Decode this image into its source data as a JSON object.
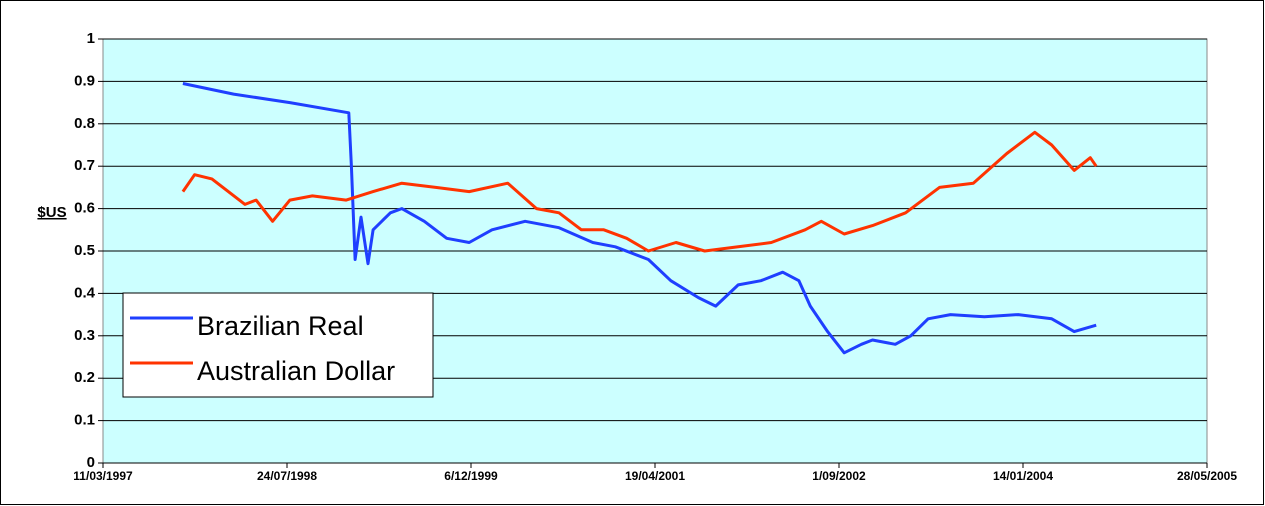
{
  "chart_data": {
    "type": "line",
    "y_label": "$US",
    "xlim": [
      "11/03/1997",
      "28/05/2005"
    ],
    "xticks": [
      "11/03/1997",
      "24/07/1998",
      "6/12/1999",
      "19/04/2001",
      "1/09/2002",
      "14/01/2004",
      "28/05/2005"
    ],
    "ylim": [
      0,
      1
    ],
    "yticks": [
      0,
      0.1,
      0.2,
      0.3,
      0.4,
      0.5,
      0.6,
      0.7,
      0.8,
      0.9,
      1
    ],
    "grid": true,
    "legend": "lower-left",
    "series": [
      {
        "name": "Brazilian Real",
        "color": "#1f3fff",
        "x": [
          "14/10/1997",
          "01/03/1998",
          "01/08/1998",
          "08/01/1999",
          "15/01/1999",
          "25/01/1999",
          "10/02/1999",
          "01/03/1999",
          "15/03/1999",
          "01/05/1999",
          "01/06/1999",
          "01/08/1999",
          "01/10/1999",
          "01/12/1999",
          "01/02/2000",
          "01/05/2000",
          "01/08/2000",
          "01/11/2000",
          "01/01/2001",
          "01/04/2001",
          "01/06/2001",
          "15/08/2001",
          "01/10/2001",
          "01/12/2001",
          "01/02/2002",
          "01/04/2002",
          "15/05/2002",
          "15/06/2002",
          "01/08/2002",
          "15/09/2002",
          "01/11/2002",
          "01/12/2002",
          "01/02/2003",
          "15/03/2003",
          "01/05/2003",
          "01/07/2003",
          "01/10/2003",
          "01/01/2004",
          "01/04/2004",
          "01/06/2004",
          "31/07/2004"
        ],
        "values": [
          0.895,
          0.87,
          0.85,
          0.826,
          0.7,
          0.48,
          0.58,
          0.47,
          0.55,
          0.59,
          0.6,
          0.57,
          0.53,
          0.52,
          0.55,
          0.57,
          0.555,
          0.52,
          0.51,
          0.48,
          0.43,
          0.39,
          0.37,
          0.42,
          0.43,
          0.45,
          0.43,
          0.37,
          0.31,
          0.26,
          0.28,
          0.29,
          0.28,
          0.3,
          0.34,
          0.35,
          0.345,
          0.35,
          0.34,
          0.31,
          0.325
        ]
      },
      {
        "name": "Australian Dollar",
        "color": "#ff3300",
        "x": [
          "14/10/1997",
          "15/11/1997",
          "01/01/1998",
          "01/04/1998",
          "01/05/1998",
          "15/06/1998",
          "01/08/1998",
          "01/10/1998",
          "01/01/1999",
          "15/03/1999",
          "01/06/1999",
          "01/09/1999",
          "01/12/1999",
          "15/03/2000",
          "01/06/2000",
          "01/08/2000",
          "01/10/2000",
          "01/12/2000",
          "01/02/2001",
          "01/04/2001",
          "15/06/2001",
          "01/09/2001",
          "01/12/2001",
          "01/03/2002",
          "01/06/2002",
          "15/07/2002",
          "15/09/2002",
          "01/12/2002",
          "01/03/2003",
          "01/06/2003",
          "01/09/2003",
          "01/12/2003",
          "15/02/2004",
          "01/04/2004",
          "01/06/2004",
          "15/07/2004",
          "31/07/2004"
        ],
        "values": [
          0.64,
          0.68,
          0.67,
          0.61,
          0.62,
          0.57,
          0.62,
          0.63,
          0.62,
          0.64,
          0.66,
          0.65,
          0.64,
          0.66,
          0.6,
          0.59,
          0.55,
          0.55,
          0.53,
          0.5,
          0.52,
          0.5,
          0.51,
          0.52,
          0.55,
          0.57,
          0.54,
          0.56,
          0.59,
          0.65,
          0.66,
          0.73,
          0.78,
          0.75,
          0.69,
          0.72,
          0.7
        ]
      }
    ]
  }
}
